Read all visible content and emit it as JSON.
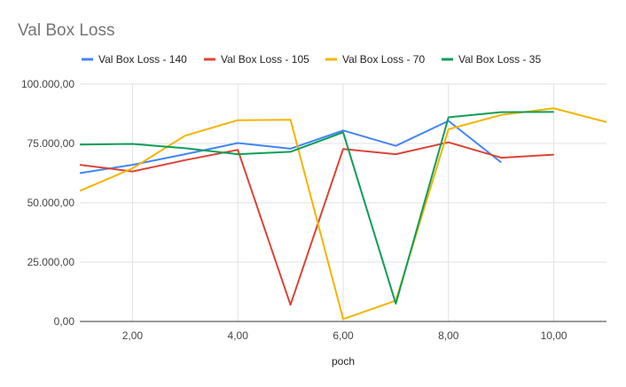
{
  "chart_data": {
    "type": "line",
    "title": "Val Box Loss",
    "xlabel": "poch",
    "ylabel": "",
    "xlim": [
      1,
      11
    ],
    "ylim": [
      0,
      100000
    ],
    "x_ticks": [
      2,
      4,
      6,
      8,
      10
    ],
    "x_tick_labels": [
      "2,00",
      "4,00",
      "6,00",
      "8,00",
      "10,00"
    ],
    "y_ticks": [
      0,
      25000,
      50000,
      75000,
      100000
    ],
    "y_tick_labels": [
      "0,00",
      "25.000,00",
      "50.000,00",
      "75.000,00",
      "100.000,00"
    ],
    "grid": true,
    "legend_position": "top",
    "series": [
      {
        "name": "Val Box Loss - 140",
        "color": "#4285f4",
        "x": [
          1,
          2,
          3,
          4,
          5,
          6,
          7,
          8,
          9
        ],
        "y": [
          62500,
          66000,
          70500,
          75200,
          72800,
          80500,
          74000,
          84500,
          67000
        ]
      },
      {
        "name": "Val Box Loss - 105",
        "color": "#db4437",
        "x": [
          1,
          2,
          3,
          4,
          5,
          6,
          7,
          8,
          9,
          10
        ],
        "y": [
          66000,
          63200,
          68000,
          72300,
          7000,
          72700,
          70500,
          75500,
          69000,
          70300
        ]
      },
      {
        "name": "Val Box Loss - 70",
        "color": "#f4b400",
        "x": [
          1,
          2,
          3,
          4,
          5,
          6,
          7,
          8,
          9,
          10,
          11
        ],
        "y": [
          55000,
          64500,
          78300,
          84800,
          85000,
          1000,
          8800,
          81000,
          87000,
          89800,
          84000
        ]
      },
      {
        "name": "Val Box Loss - 35",
        "color": "#0f9d58",
        "x": [
          1,
          2,
          3,
          4,
          5,
          6,
          7,
          8,
          9,
          10
        ],
        "y": [
          74500,
          74800,
          73000,
          70500,
          71500,
          79700,
          7500,
          86000,
          88200,
          88300
        ]
      }
    ]
  }
}
